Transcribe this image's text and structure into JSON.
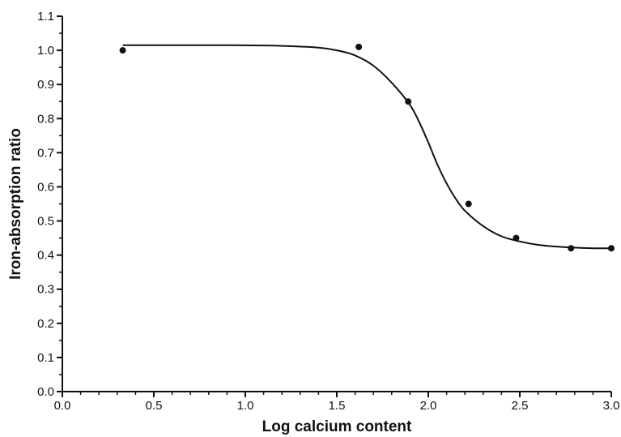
{
  "chart_data": {
    "type": "scatter",
    "title": "",
    "xlabel": "Log calcium content",
    "ylabel": "Iron-absorption ratio",
    "xlim": [
      0.0,
      3.0
    ],
    "ylim": [
      0.0,
      1.1
    ],
    "x_ticks": [
      "0.0",
      "0.5",
      "1.0",
      "1.5",
      "2.0",
      "2.5",
      "3.0"
    ],
    "y_ticks": [
      "0.0",
      "0.1",
      "0.2",
      "0.3",
      "0.4",
      "0.5",
      "0.6",
      "0.7",
      "0.8",
      "0.9",
      "1.0",
      "1.1"
    ],
    "grid": false,
    "legend": "none",
    "series": [
      {
        "kind": "points",
        "x": [
          0.33,
          1.62,
          1.89,
          2.22,
          2.48,
          2.78,
          3.0
        ],
        "y": [
          1.0,
          1.01,
          0.85,
          0.55,
          0.45,
          0.42,
          0.42
        ]
      },
      {
        "kind": "fitted-curve",
        "x": [
          0.33,
          0.6,
          0.9,
          1.2,
          1.4,
          1.5,
          1.6,
          1.7,
          1.8,
          1.9,
          1.95,
          2.0,
          2.05,
          2.1,
          2.15,
          2.2,
          2.3,
          2.4,
          2.5,
          2.6,
          2.7,
          2.8,
          2.9,
          3.0
        ],
        "y": [
          1.015,
          1.015,
          1.015,
          1.013,
          1.008,
          1.0,
          0.985,
          0.955,
          0.905,
          0.84,
          0.79,
          0.73,
          0.665,
          0.61,
          0.565,
          0.53,
          0.485,
          0.455,
          0.44,
          0.43,
          0.425,
          0.422,
          0.42,
          0.42
        ]
      }
    ],
    "colors": {
      "ink": "#111111",
      "background": "#ffffff"
    }
  }
}
